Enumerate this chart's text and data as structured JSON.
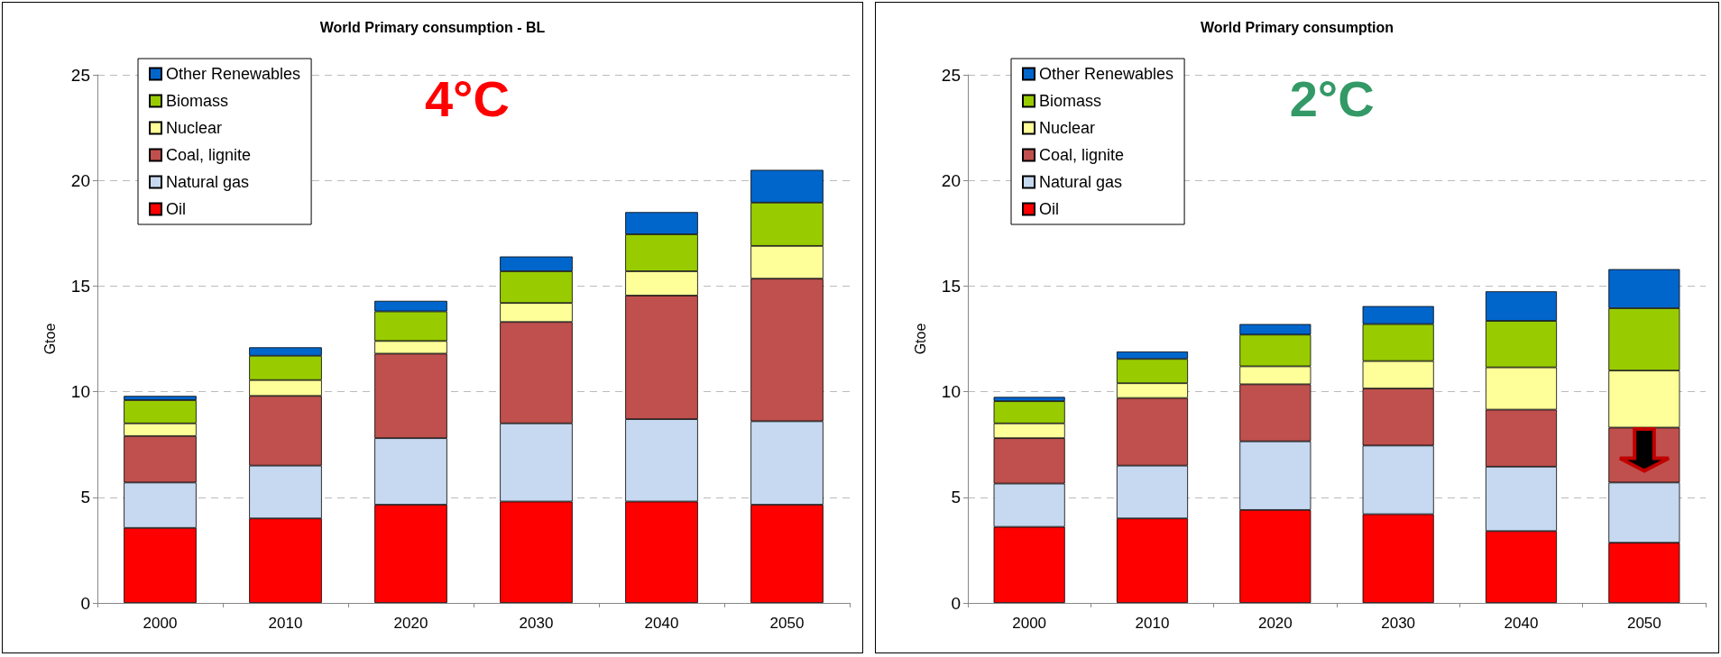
{
  "chart_data": [
    {
      "type": "bar",
      "title": "World Primary consumption - BL",
      "ylabel": "Gtoe",
      "categories": [
        "2000",
        "2010",
        "2020",
        "2030",
        "2040",
        "2050"
      ],
      "stacked": true,
      "ylim": [
        0,
        25
      ],
      "yticks": [
        0,
        5,
        10,
        15,
        20,
        25
      ],
      "grid": "y",
      "legend": "top left",
      "annotations": [
        "4°C"
      ],
      "series": [
        {
          "name": "Oil",
          "color": "#ff0000",
          "values": [
            3.55,
            4.0,
            4.65,
            4.8,
            4.8,
            4.65
          ]
        },
        {
          "name": "Natural gas",
          "color": "#c6d9f0",
          "values": [
            2.15,
            2.5,
            3.15,
            3.7,
            3.9,
            3.95
          ]
        },
        {
          "name": "Coal, lignite",
          "color": "#c0504d",
          "values": [
            2.2,
            3.3,
            4.0,
            4.8,
            5.85,
            6.75
          ]
        },
        {
          "name": "Nuclear",
          "color": "#ffff99",
          "values": [
            0.6,
            0.75,
            0.6,
            0.9,
            1.15,
            1.55
          ]
        },
        {
          "name": "Biomass",
          "color": "#99cc00",
          "values": [
            1.1,
            1.15,
            1.4,
            1.5,
            1.75,
            2.05
          ]
        },
        {
          "name": "Other Renewables",
          "color": "#0066cc",
          "values": [
            0.2,
            0.4,
            0.5,
            0.7,
            1.05,
            1.55
          ]
        }
      ]
    },
    {
      "type": "bar",
      "title": "World Primary consumption",
      "ylabel": "Gtoe",
      "categories": [
        "2000",
        "2010",
        "2020",
        "2030",
        "2040",
        "2050"
      ],
      "stacked": true,
      "ylim": [
        0,
        25
      ],
      "yticks": [
        0,
        5,
        10,
        15,
        20,
        25
      ],
      "grid": "y",
      "legend": "top left",
      "annotations": [
        "2°C"
      ],
      "series": [
        {
          "name": "Oil",
          "color": "#ff0000",
          "values": [
            3.6,
            4.0,
            4.4,
            4.2,
            3.4,
            2.85
          ]
        },
        {
          "name": "Natural gas",
          "color": "#c6d9f0",
          "values": [
            2.05,
            2.5,
            3.25,
            3.25,
            3.05,
            2.85
          ]
        },
        {
          "name": "Coal, lignite",
          "color": "#c0504d",
          "values": [
            2.15,
            3.2,
            2.7,
            2.7,
            2.7,
            2.6
          ]
        },
        {
          "name": "Nuclear",
          "color": "#ffff99",
          "values": [
            0.7,
            0.7,
            0.85,
            1.3,
            2.0,
            2.7
          ]
        },
        {
          "name": "Biomass",
          "color": "#99cc00",
          "values": [
            1.05,
            1.15,
            1.5,
            1.75,
            2.2,
            2.95
          ]
        },
        {
          "name": "Other Renewables",
          "color": "#0066cc",
          "values": [
            0.2,
            0.35,
            0.5,
            0.85,
            1.4,
            1.85
          ]
        }
      ]
    }
  ]
}
